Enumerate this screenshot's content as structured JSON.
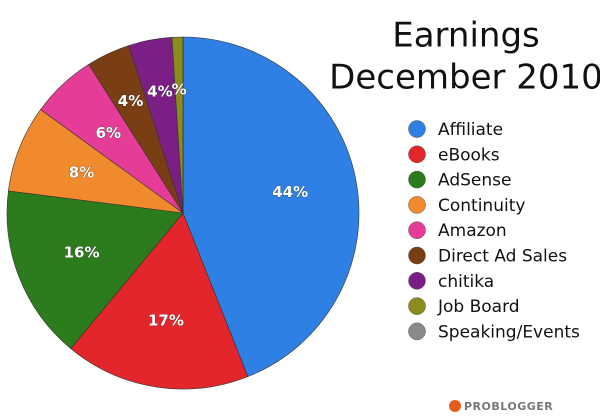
{
  "chart_data": {
    "type": "pie",
    "title": [
      "Earnings",
      "December 2010"
    ],
    "categories": [
      "Affiliate",
      "eBooks",
      "AdSense",
      "Continuity",
      "Amazon",
      "Direct Ad Sales",
      "chitika",
      "Job Board",
      "Speaking/Events"
    ],
    "values": [
      44,
      17,
      16,
      8,
      6,
      4,
      4,
      1,
      0
    ],
    "value_labels": [
      "44%",
      "17%",
      "16%",
      "8%",
      "6%",
      "4%",
      "4%",
      "%",
      null
    ],
    "colors": [
      "#2f80e4",
      "#e2262b",
      "#2c7c1d",
      "#f08a2c",
      "#e53c97",
      "#7a3e14",
      "#7b1f87",
      "#8c8c1c",
      "#8a8a8a"
    ],
    "legend": "right",
    "logo": "PROBLOGGER"
  }
}
